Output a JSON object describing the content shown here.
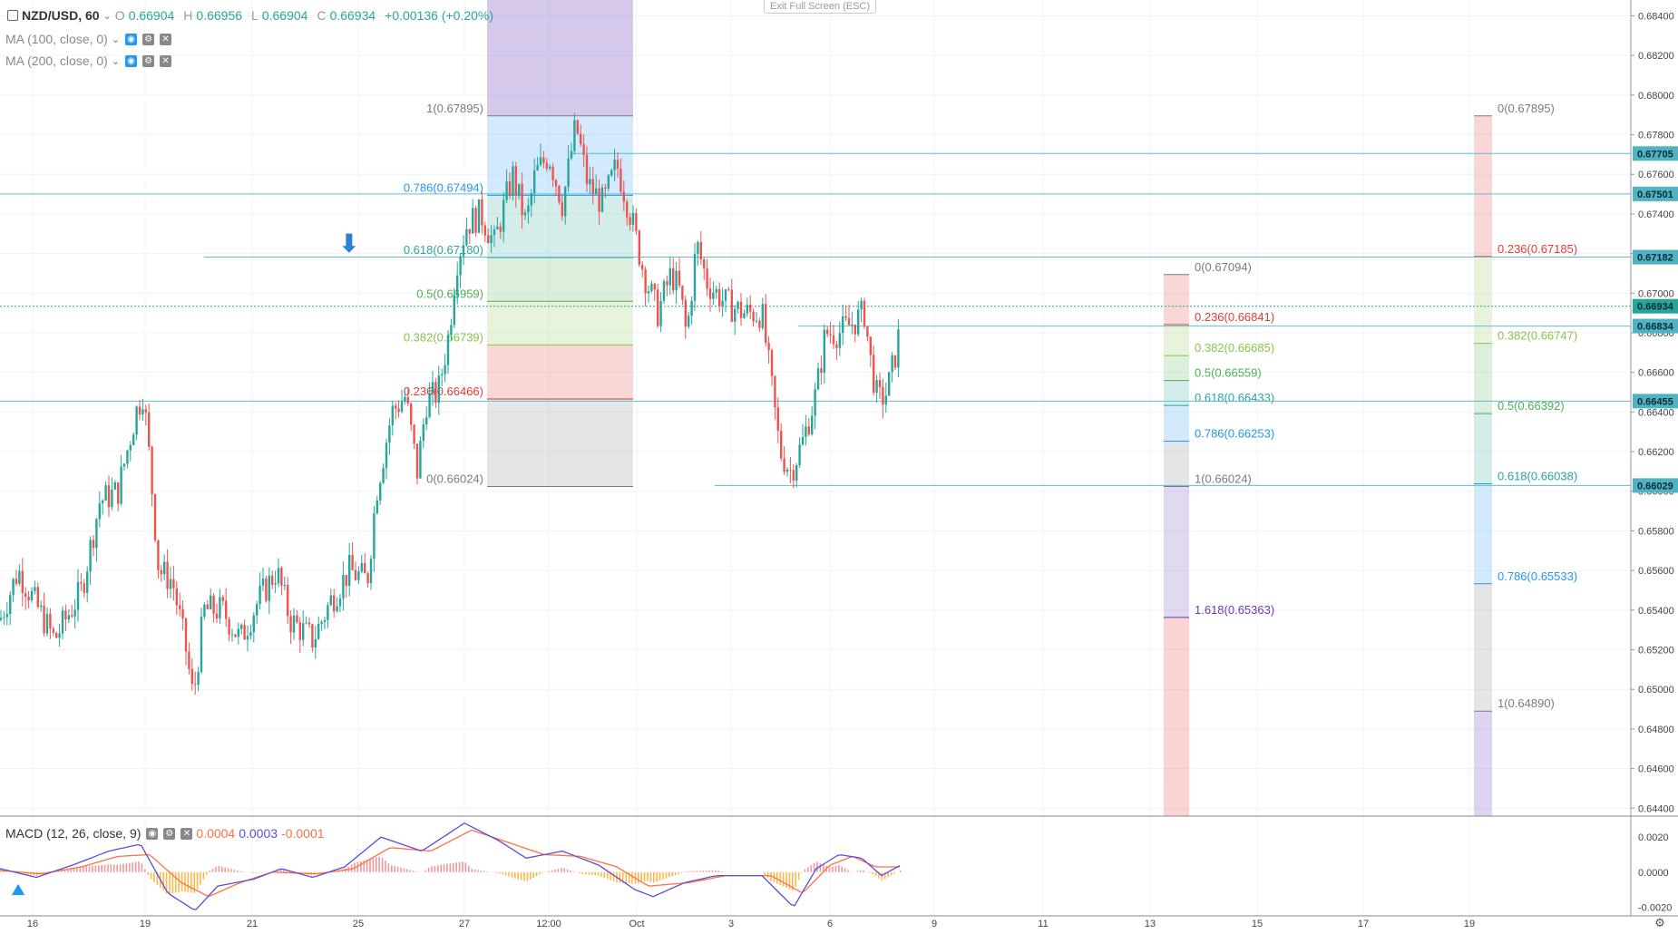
{
  "legend": {
    "symbol": "NZD/USD, 60",
    "open_k": "O",
    "open_v": "0.66904",
    "high_k": "H",
    "high_v": "0.66956",
    "low_k": "L",
    "low_v": "0.66904",
    "close_k": "C",
    "close_v": "0.66934",
    "change": "+0.00136 (+0.20%)",
    "ma1": "MA (100, close, 0)",
    "ma2": "MA (200, close, 0)",
    "macd": "MACD (12, 26, close, 9)",
    "macd_v1": "0.0004",
    "macd_v2": "0.0003",
    "macd_v3": "-0.0001"
  },
  "exit_fullscreen": "Exit Full Screen (ESC)",
  "colors": {
    "up": "#26a69a",
    "down": "#ef5350",
    "line": "#5fbcd3",
    "macd": "#5b4cdb",
    "signal": "#ff7043",
    "price_tag": "#4fb3c4"
  },
  "icons": [
    "chevron-down-icon",
    "eye-icon",
    "gear-icon",
    "close-icon",
    "arrow-down-icon",
    "logo-icon",
    "settings-icon"
  ],
  "chart_data": {
    "type": "candlestick",
    "y_axis": {
      "ylim": [
        0.6436,
        0.6848
      ],
      "ticks": [
        "0.68400",
        "0.68200",
        "0.68000",
        "0.67800",
        "0.67600",
        "0.67400",
        "0.67200",
        "0.67000",
        "0.66800",
        "0.66600",
        "0.66400",
        "0.66200",
        "0.66000",
        "0.65800",
        "0.65600",
        "0.65400",
        "0.65200",
        "0.65000",
        "0.64800",
        "0.64600",
        "0.64400"
      ]
    },
    "x_ticks": [
      "16",
      "19",
      "21",
      "25",
      "27",
      "12:00",
      "Oct",
      "3",
      "6",
      "9",
      "11",
      "13",
      "15",
      "17",
      "19"
    ],
    "price_series_anchors": [
      [
        0,
        0.6535
      ],
      [
        20,
        0.656
      ],
      [
        60,
        0.6525
      ],
      [
        90,
        0.655
      ],
      [
        110,
        0.6595
      ],
      [
        130,
        0.66
      ],
      [
        150,
        0.664
      ],
      [
        158,
        0.665
      ],
      [
        165,
        0.6615
      ],
      [
        175,
        0.656
      ],
      [
        190,
        0.6555
      ],
      [
        205,
        0.652
      ],
      [
        213,
        0.6495
      ],
      [
        225,
        0.654
      ],
      [
        245,
        0.654
      ],
      [
        265,
        0.6525
      ],
      [
        285,
        0.6545
      ],
      [
        305,
        0.656
      ],
      [
        320,
        0.6535
      ],
      [
        345,
        0.6525
      ],
      [
        365,
        0.6545
      ],
      [
        385,
        0.656
      ],
      [
        405,
        0.6555
      ],
      [
        415,
        0.66
      ],
      [
        432,
        0.664
      ],
      [
        447,
        0.6648
      ],
      [
        460,
        0.661
      ],
      [
        470,
        0.6645
      ],
      [
        483,
        0.665
      ],
      [
        495,
        0.668
      ],
      [
        503,
        0.6715
      ],
      [
        515,
        0.6735
      ],
      [
        530,
        0.674
      ],
      [
        545,
        0.6725
      ],
      [
        565,
        0.676
      ],
      [
        580,
        0.6735
      ],
      [
        590,
        0.676
      ],
      [
        605,
        0.677
      ],
      [
        620,
        0.6745
      ],
      [
        635,
        0.6785
      ],
      [
        648,
        0.6755
      ],
      [
        665,
        0.6745
      ],
      [
        680,
        0.6765
      ],
      [
        695,
        0.674
      ],
      [
        710,
        0.671
      ],
      [
        725,
        0.669
      ],
      [
        740,
        0.671
      ],
      [
        750,
        0.67
      ],
      [
        757,
        0.6678
      ],
      [
        768,
        0.6725
      ],
      [
        780,
        0.6705
      ],
      [
        800,
        0.6695
      ],
      [
        820,
        0.669
      ],
      [
        840,
        0.669
      ],
      [
        850,
        0.6655
      ],
      [
        860,
        0.662
      ],
      [
        872,
        0.661
      ],
      [
        885,
        0.6625
      ],
      [
        900,
        0.665
      ],
      [
        910,
        0.668
      ],
      [
        925,
        0.668
      ],
      [
        940,
        0.6685
      ],
      [
        953,
        0.669
      ],
      [
        960,
        0.6665
      ],
      [
        968,
        0.6645
      ],
      [
        978,
        0.665
      ],
      [
        990,
        0.6675
      ],
      [
        993,
        0.6693
      ]
    ],
    "horizontal_levels": [
      0.67705,
      0.67501,
      0.67182,
      0.66834,
      0.66455,
      0.66029
    ],
    "current_price": 0.66934,
    "price_labels": [
      "0.67705",
      "0.67501",
      "0.67182",
      "0.66934",
      "0.66834",
      "0.66455",
      "0.66029"
    ],
    "fib_retracements": [
      {
        "levels": [
          {
            "label": "1(0.67895)",
            "value": 0.67895,
            "color": "#787b86"
          },
          {
            "label": "0.786(0.67494)",
            "value": 0.67494,
            "color": "#2196f3"
          },
          {
            "label": "0.618(0.67180)",
            "value": 0.6718,
            "color": "#26a69a"
          },
          {
            "label": "0.5(0.66959)",
            "value": 0.66959,
            "color": "#4caf50"
          },
          {
            "label": "0.382(0.66739)",
            "value": 0.66739,
            "color": "#8bc34a"
          },
          {
            "label": "0.236(0.66466)",
            "value": 0.66466,
            "color": "#e53935"
          },
          {
            "label": "0(0.66024)",
            "value": 0.66024,
            "color": "#787b86"
          }
        ],
        "top_value": 0.6848
      },
      {
        "levels": [
          {
            "label": "0(0.67094)",
            "value": 0.67094,
            "color": "#787b86"
          },
          {
            "label": "0.236(0.66841)",
            "value": 0.66841,
            "color": "#e53935"
          },
          {
            "label": "0.382(0.66685)",
            "value": 0.66685,
            "color": "#8bc34a"
          },
          {
            "label": "0.5(0.66559)",
            "value": 0.66559,
            "color": "#4caf50"
          },
          {
            "label": "0.618(0.66433)",
            "value": 0.66433,
            "color": "#26a69a"
          },
          {
            "label": "0.786(0.66253)",
            "value": 0.66253,
            "color": "#2196f3"
          },
          {
            "label": "1(0.66024)",
            "value": 0.66024,
            "color": "#787b86"
          },
          {
            "label": "1.618(0.65363)",
            "value": 0.65363,
            "color": "#673ab7"
          }
        ],
        "bottom_value": 0.6436
      },
      {
        "levels": [
          {
            "label": "0(0.67895)",
            "value": 0.67895,
            "color": "#787b86"
          },
          {
            "label": "0.236(0.67185)",
            "value": 0.67185,
            "color": "#e53935"
          },
          {
            "label": "0.382(0.66747)",
            "value": 0.66747,
            "color": "#8bc34a"
          },
          {
            "label": "0.5(0.66392)",
            "value": 0.66392,
            "color": "#4caf50"
          },
          {
            "label": "0.618(0.66038)",
            "value": 0.66038,
            "color": "#26a69a"
          },
          {
            "label": "0.786(0.65533)",
            "value": 0.65533,
            "color": "#2196f3"
          },
          {
            "label": "1(0.64890)",
            "value": 0.6489,
            "color": "#787b86"
          }
        ],
        "bottom_value": 0.6436
      }
    ],
    "macd": {
      "ylim": [
        -0.0025,
        0.0032
      ],
      "ticks": [
        "0.0020",
        "0.0000",
        "-0.0020"
      ],
      "macd_anchors": [
        [
          0,
          0.0002
        ],
        [
          40,
          -0.0003
        ],
        [
          80,
          0.0004
        ],
        [
          120,
          0.0012
        ],
        [
          155,
          0.0016
        ],
        [
          185,
          -0.0012
        ],
        [
          215,
          -0.0022
        ],
        [
          240,
          -0.0008
        ],
        [
          280,
          -0.0004
        ],
        [
          310,
          0.0002
        ],
        [
          345,
          -0.0003
        ],
        [
          380,
          0.0003
        ],
        [
          420,
          0.002
        ],
        [
          465,
          0.0012
        ],
        [
          512,
          0.0028
        ],
        [
          550,
          0.0018
        ],
        [
          580,
          0.0008
        ],
        [
          620,
          0.0012
        ],
        [
          660,
          0.0004
        ],
        [
          700,
          -0.001
        ],
        [
          720,
          -0.0014
        ],
        [
          755,
          -0.0006
        ],
        [
          790,
          -0.0002
        ],
        [
          840,
          -0.0002
        ],
        [
          875,
          -0.002
        ],
        [
          900,
          0.0002
        ],
        [
          925,
          0.001
        ],
        [
          950,
          0.0008
        ],
        [
          972,
          -0.0002
        ],
        [
          993,
          0.0004
        ]
      ],
      "signal_anchors": [
        [
          0,
          0.0001
        ],
        [
          45,
          -0.0001
        ],
        [
          90,
          0.0003
        ],
        [
          130,
          0.0009
        ],
        [
          165,
          0.001
        ],
        [
          200,
          -0.0006
        ],
        [
          230,
          -0.0014
        ],
        [
          265,
          -0.0006
        ],
        [
          300,
          0.0
        ],
        [
          350,
          -0.0001
        ],
        [
          390,
          0.0002
        ],
        [
          430,
          0.0014
        ],
        [
          475,
          0.0012
        ],
        [
          520,
          0.0024
        ],
        [
          560,
          0.0017
        ],
        [
          600,
          0.001
        ],
        [
          640,
          0.0009
        ],
        [
          680,
          0.0003
        ],
        [
          715,
          -0.0008
        ],
        [
          760,
          -0.0006
        ],
        [
          800,
          -0.0002
        ],
        [
          850,
          -0.0002
        ],
        [
          885,
          -0.0012
        ],
        [
          915,
          0.0004
        ],
        [
          940,
          0.0009
        ],
        [
          965,
          0.0003
        ],
        [
          993,
          0.0003
        ]
      ]
    }
  }
}
